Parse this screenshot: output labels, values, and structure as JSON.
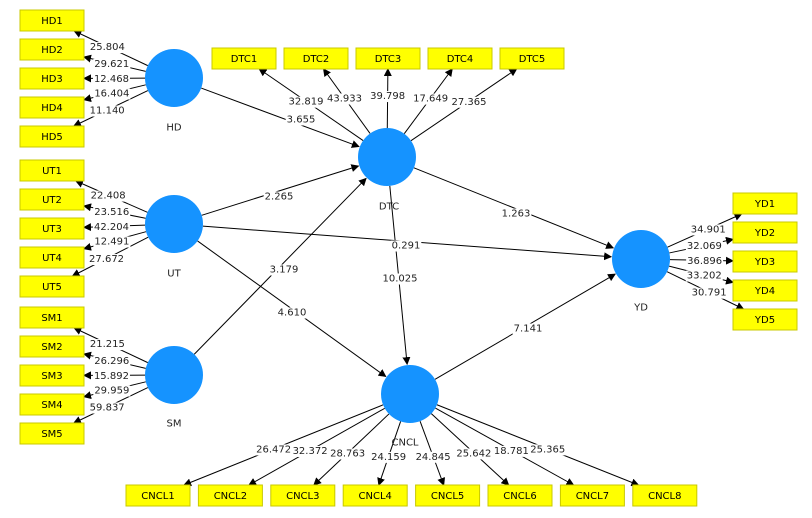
{
  "colors": {
    "construct": "#1593ff",
    "indicator_fill": "#ffff00",
    "indicator_border": "#c8c800",
    "line": "#000000"
  },
  "constructs": [
    {
      "id": "HD",
      "label": "HD"
    },
    {
      "id": "UT",
      "label": "UT"
    },
    {
      "id": "SM",
      "label": "SM"
    },
    {
      "id": "DTC",
      "label": "DTC"
    },
    {
      "id": "YD",
      "label": "YD"
    },
    {
      "id": "CNCL",
      "label": "CNCL"
    }
  ],
  "indicators": [
    {
      "construct": "HD",
      "label": "HD1",
      "value": "25.804"
    },
    {
      "construct": "HD",
      "label": "HD2",
      "value": "29.621"
    },
    {
      "construct": "HD",
      "label": "HD3",
      "value": "12.468"
    },
    {
      "construct": "HD",
      "label": "HD4",
      "value": "16.404"
    },
    {
      "construct": "HD",
      "label": "HD5",
      "value": "11.140"
    },
    {
      "construct": "UT",
      "label": "UT1",
      "value": "22.408"
    },
    {
      "construct": "UT",
      "label": "UT2",
      "value": "23.516"
    },
    {
      "construct": "UT",
      "label": "UT3",
      "value": "42.204"
    },
    {
      "construct": "UT",
      "label": "UT4",
      "value": "12.491"
    },
    {
      "construct": "UT",
      "label": "UT5",
      "value": "27.672"
    },
    {
      "construct": "SM",
      "label": "SM1",
      "value": "21.215"
    },
    {
      "construct": "SM",
      "label": "SM2",
      "value": "26.296"
    },
    {
      "construct": "SM",
      "label": "SM3",
      "value": "15.892"
    },
    {
      "construct": "SM",
      "label": "SM4",
      "value": "29.959"
    },
    {
      "construct": "SM",
      "label": "SM5",
      "value": "59.837"
    },
    {
      "construct": "DTC",
      "label": "DTC1",
      "value": "32.819"
    },
    {
      "construct": "DTC",
      "label": "DTC2",
      "value": "43.933"
    },
    {
      "construct": "DTC",
      "label": "DTC3",
      "value": "39.798"
    },
    {
      "construct": "DTC",
      "label": "DTC4",
      "value": "17.649"
    },
    {
      "construct": "DTC",
      "label": "DTC5",
      "value": "27.365"
    },
    {
      "construct": "YD",
      "label": "YD1",
      "value": "34.901"
    },
    {
      "construct": "YD",
      "label": "YD2",
      "value": "32.069"
    },
    {
      "construct": "YD",
      "label": "YD3",
      "value": "36.896"
    },
    {
      "construct": "YD",
      "label": "YD4",
      "value": "33.202"
    },
    {
      "construct": "YD",
      "label": "YD5",
      "value": "30.791"
    },
    {
      "construct": "CNCL",
      "label": "CNCL1",
      "value": "26.472"
    },
    {
      "construct": "CNCL",
      "label": "CNCL2",
      "value": "32.372"
    },
    {
      "construct": "CNCL",
      "label": "CNCL3",
      "value": "28.763"
    },
    {
      "construct": "CNCL",
      "label": "CNCL4",
      "value": "24.159"
    },
    {
      "construct": "CNCL",
      "label": "CNCL5",
      "value": "24.845"
    },
    {
      "construct": "CNCL",
      "label": "CNCL6",
      "value": "25.642"
    },
    {
      "construct": "CNCL",
      "label": "CNCL7",
      "value": "18.781"
    },
    {
      "construct": "CNCL",
      "label": "CNCL8",
      "value": "25.365"
    }
  ],
  "paths": [
    {
      "from": "HD",
      "to": "DTC",
      "value": "3.655"
    },
    {
      "from": "UT",
      "to": "DTC",
      "value": "2.265"
    },
    {
      "from": "SM",
      "to": "DTC",
      "value": "3.179"
    },
    {
      "from": "UT",
      "to": "YD",
      "value": "0.291"
    },
    {
      "from": "UT",
      "to": "CNCL",
      "value": "4.610"
    },
    {
      "from": "DTC",
      "to": "YD",
      "value": "1.263"
    },
    {
      "from": "DTC",
      "to": "CNCL",
      "value": "10.025"
    },
    {
      "from": "CNCL",
      "to": "YD",
      "value": "7.141"
    }
  ]
}
